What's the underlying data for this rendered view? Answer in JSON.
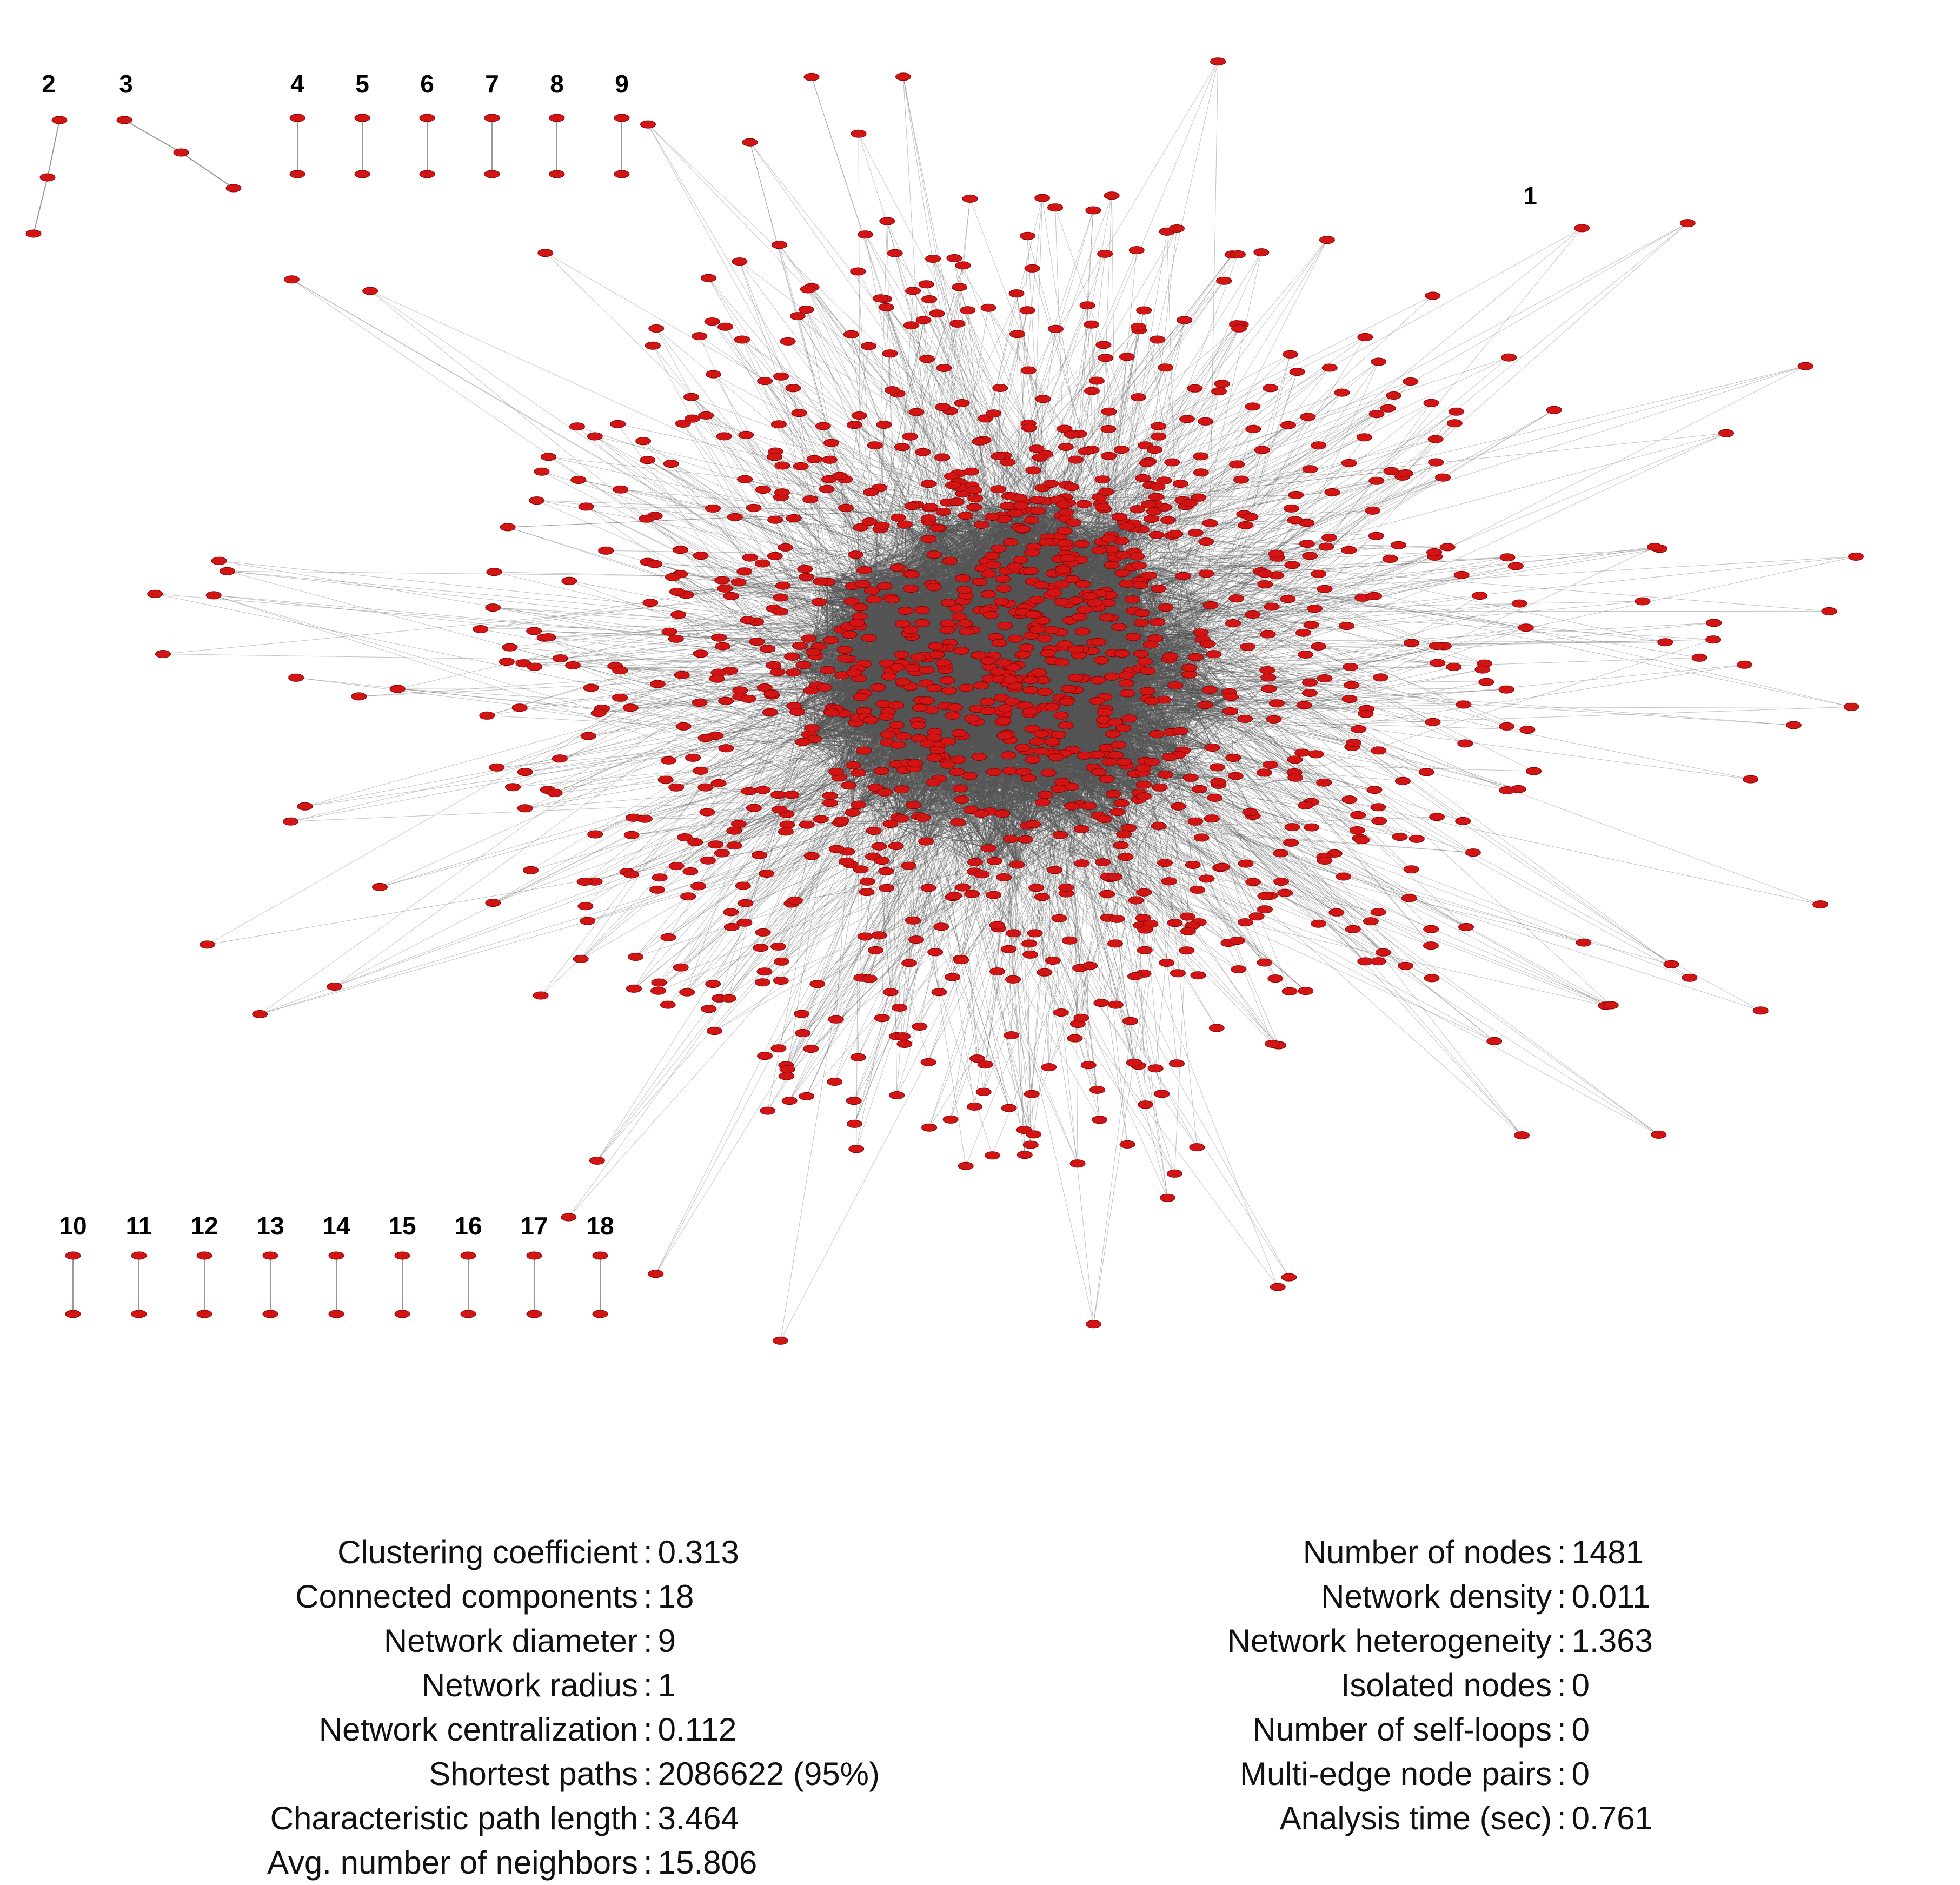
{
  "node_color": "#d11414",
  "edge_color": "#555555",
  "component_labels": [
    "1",
    "2",
    "3",
    "4",
    "5",
    "6",
    "7",
    "8",
    "9",
    "10",
    "11",
    "12",
    "13",
    "14",
    "15",
    "16",
    "17",
    "18"
  ],
  "stats_left": [
    {
      "label": "Clustering coefficient",
      "value": "0.313"
    },
    {
      "label": "Connected components",
      "value": "18"
    },
    {
      "label": "Network diameter",
      "value": "9"
    },
    {
      "label": "Network radius",
      "value": "1"
    },
    {
      "label": "Network centralization",
      "value": "0.112"
    },
    {
      "label": "Shortest paths",
      "value": "2086622 (95%)"
    },
    {
      "label": "Characteristic path length",
      "value": "3.464"
    },
    {
      "label": "Avg. number of neighbors",
      "value": "15.806"
    }
  ],
  "stats_right": [
    {
      "label": "Number of nodes",
      "value": "1481"
    },
    {
      "label": "Network density",
      "value": "0.011"
    },
    {
      "label": "Network heterogeneity",
      "value": "1.363"
    },
    {
      "label": "Isolated nodes",
      "value": "0"
    },
    {
      "label": "Number of self-loops",
      "value": "0"
    },
    {
      "label": "Multi-edge node pairs",
      "value": "0"
    },
    {
      "label": "Analysis time (sec)",
      "value": "0.761"
    }
  ]
}
